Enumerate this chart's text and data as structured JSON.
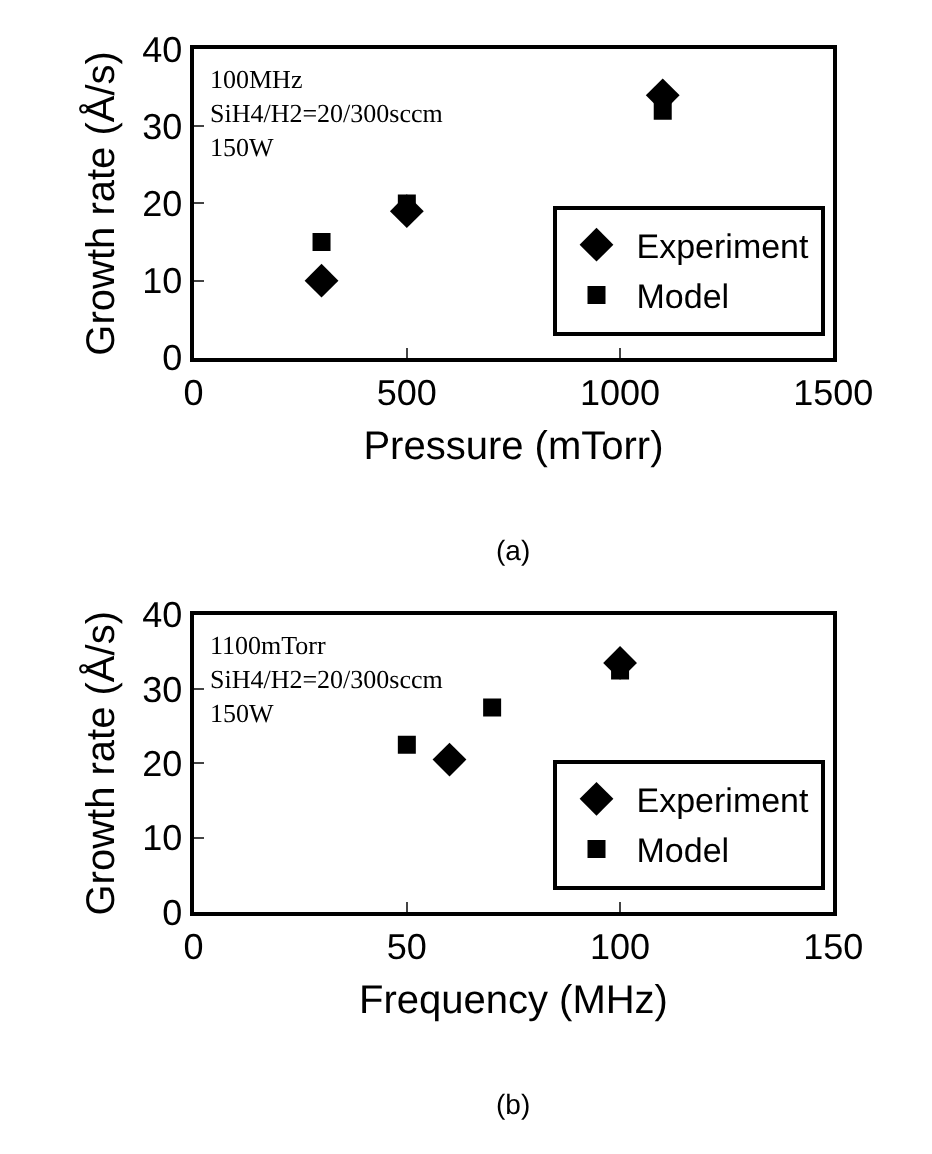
{
  "chart_data": [
    {
      "type": "scatter",
      "xlabel": "Pressure (mTorr)",
      "ylabel": "Growth rate (Å/s)",
      "xlim": [
        0,
        1500
      ],
      "xticks": [
        0,
        500,
        1000,
        1500
      ],
      "ylim": [
        0,
        40
      ],
      "yticks": [
        0,
        10,
        20,
        30,
        40
      ],
      "legend": "bottom right",
      "series": [
        {
          "name": "Experiment",
          "color": "#000000",
          "marker": "diamond",
          "x": [
            300,
            500,
            1100
          ],
          "values": [
            10,
            19,
            34
          ]
        },
        {
          "name": "Model",
          "color": "#000000",
          "marker": "square",
          "x": [
            300,
            500,
            1100
          ],
          "values": [
            15,
            20,
            32
          ]
        }
      ],
      "annotations": [
        "100MHz\nSiH4/H2=20/300sccm\n150W",
        "(a)"
      ]
    },
    {
      "type": "scatter",
      "xlabel": "Frequency (MHz)",
      "ylabel": "Growth rate (Å/s)",
      "xlim": [
        0,
        150
      ],
      "xticks": [
        0,
        50,
        100,
        150
      ],
      "ylim": [
        0,
        40
      ],
      "yticks": [
        0,
        10,
        20,
        30,
        40
      ],
      "legend": "bottom right",
      "series": [
        {
          "name": "Experiment",
          "color": "#000000",
          "marker": "diamond",
          "x": [
            60,
            100
          ],
          "values": [
            20.5,
            33.5
          ]
        },
        {
          "name": "Model",
          "color": "#000000",
          "marker": "square",
          "x": [
            50,
            70,
            100
          ],
          "values": [
            22.5,
            27.5,
            32.5
          ]
        }
      ],
      "annotations": [
        "1100mTorr\nSiH4/H2=20/300sccm\n150W",
        "(b)"
      ]
    }
  ]
}
